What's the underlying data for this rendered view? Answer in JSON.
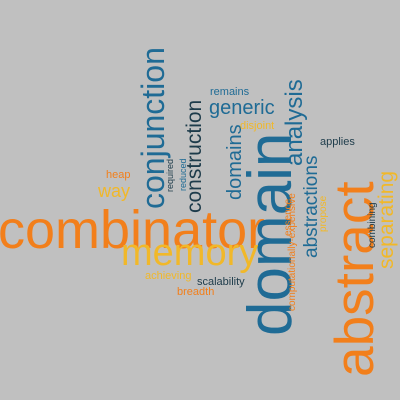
{
  "colors": {
    "background": "#c0c0c0",
    "orange": "#f27f1b",
    "blue": "#1f6b95",
    "gold": "#f1b829",
    "dark": "#1d3b4a"
  },
  "words": {
    "combinator": "combinator",
    "abstract": "abstract",
    "domain": "domain",
    "memory": "memory",
    "conjunction": "conjunction",
    "construction": "construction",
    "generic": "generic",
    "analysis": "analysis",
    "domains": "domains",
    "abstractions": "abstractions",
    "separating": "separating",
    "way": "way",
    "remains": "remains",
    "disjoint": "disjoint",
    "applies": "applies",
    "heap": "heap",
    "required": "required",
    "reduced": "reduced",
    "essence": "essence",
    "computationally_expensive": "computationally-expensive",
    "propose": "propose",
    "combining": "combining",
    "achieving": "achieving",
    "scalability": "scalability",
    "breadth": "breadth"
  }
}
